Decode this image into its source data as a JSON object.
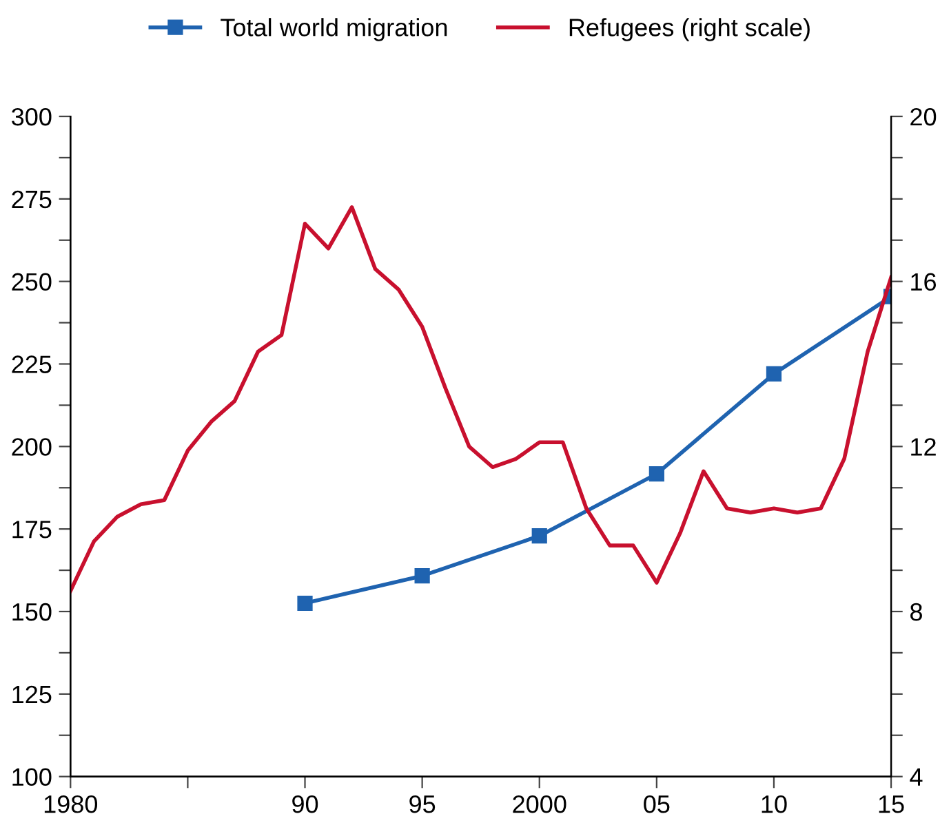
{
  "chart_data": {
    "type": "line",
    "x": [
      1980,
      1981,
      1982,
      1983,
      1984,
      1985,
      1986,
      1987,
      1988,
      1989,
      1990,
      1991,
      1992,
      1993,
      1994,
      1995,
      1996,
      1997,
      1998,
      1999,
      2000,
      2001,
      2002,
      2003,
      2004,
      2005,
      2006,
      2007,
      2008,
      2009,
      2010,
      2011,
      2012,
      2013,
      2014,
      2015
    ],
    "series": [
      {
        "name": "Total world migration",
        "color": "#1f63b0",
        "marker": "square",
        "x": [
          1990,
          1995,
          2000,
          2005,
          2010,
          2015
        ],
        "values": [
          152.5,
          160.8,
          172.9,
          191.7,
          222,
          245.4
        ]
      },
      {
        "name": "Refugees (right scale)",
        "color": "#c8102e",
        "marker": "none",
        "axis": "y2",
        "values": [
          8.5,
          9.7,
          10.3,
          10.6,
          10.7,
          11.9,
          12.6,
          13.1,
          14.3,
          14.7,
          17.4,
          16.8,
          17.8,
          16.3,
          15.8,
          14.9,
          13.4,
          12.0,
          11.5,
          11.7,
          12.1,
          12.1,
          10.5,
          9.6,
          9.6,
          8.7,
          9.9,
          11.4,
          10.5,
          10.4,
          10.5,
          10.4,
          10.5,
          11.7,
          14.3,
          16.1
        ]
      }
    ],
    "xlim": [
      1980,
      2015
    ],
    "xticks": [
      1980,
      {
        "value": 1985,
        "label": null
      },
      {
        "value": 1990,
        "label": "90"
      },
      {
        "value": 1995,
        "label": "95"
      },
      2000,
      {
        "value": 2005,
        "label": "05"
      },
      {
        "value": 2010,
        "label": "10"
      },
      {
        "value": 2015,
        "label": "15"
      }
    ],
    "ylim": [
      100,
      300
    ],
    "yticks": [
      100,
      {
        "value": 112.5,
        "label": null
      },
      125,
      {
        "value": 137.5,
        "label": null
      },
      150,
      {
        "value": 162.5,
        "label": null
      },
      175,
      {
        "value": 187.5,
        "label": null
      },
      200,
      {
        "value": 212.5,
        "label": null
      },
      225,
      {
        "value": 237.5,
        "label": null
      },
      250,
      {
        "value": 262.5,
        "label": null
      },
      275,
      {
        "value": 287.5,
        "label": null
      },
      300
    ],
    "y2lim": [
      4,
      20
    ],
    "y2ticks": [
      4,
      {
        "value": 5,
        "label": null
      },
      {
        "value": 6,
        "label": null
      },
      {
        "value": 7,
        "label": null
      },
      8,
      {
        "value": 9,
        "label": null
      },
      {
        "value": 10,
        "label": null
      },
      {
        "value": 11,
        "label": null
      },
      12,
      {
        "value": 13,
        "label": null
      },
      {
        "value": 14,
        "label": null
      },
      {
        "value": 15,
        "label": null
      },
      16,
      {
        "value": 17,
        "label": null
      },
      {
        "value": 18,
        "label": null
      },
      {
        "value": 19,
        "label": null
      },
      20
    ],
    "grid": false,
    "legend": "top",
    "line_style": "solid"
  }
}
